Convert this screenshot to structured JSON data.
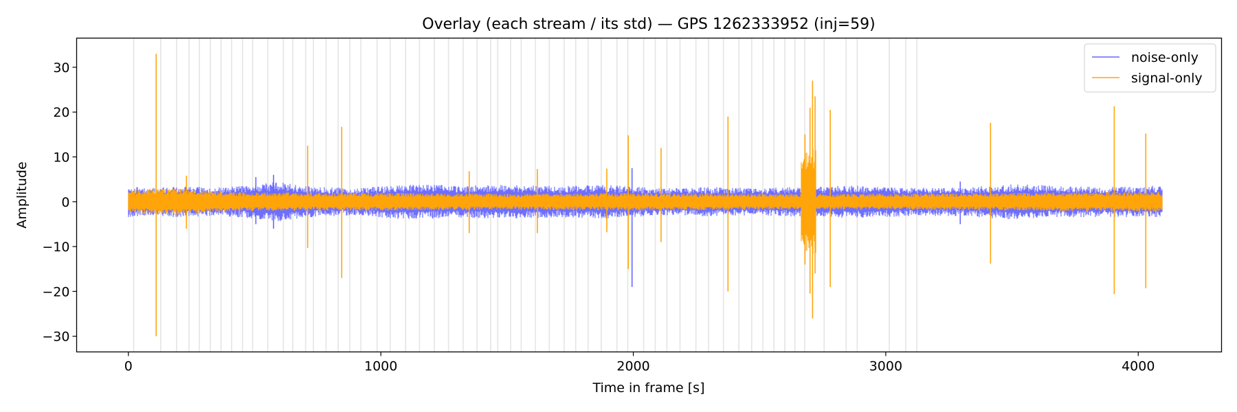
{
  "chart_data": {
    "type": "line",
    "title": "Overlay (each stream / its std) — GPS 1262333952 (inj=59)",
    "xlabel": "Time in frame [s]",
    "ylabel": "Amplitude",
    "xlim": [
      -205,
      4330
    ],
    "ylim": [
      -33.5,
      36.5
    ],
    "xticks": [
      0,
      1000,
      2000,
      3000,
      4000
    ],
    "yticks": [
      -30,
      -20,
      -10,
      0,
      10,
      20,
      30
    ],
    "x_extent": [
      0,
      4096
    ],
    "grid": false,
    "legend_position": "top-right",
    "injection_markers_x": [
      21,
      128,
      191,
      240,
      281,
      325,
      367,
      409,
      452,
      492,
      552,
      614,
      651,
      702,
      733,
      783,
      831,
      877,
      921,
      985,
      1037,
      1098,
      1153,
      1212,
      1268,
      1326,
      1381,
      1435,
      1463,
      1514,
      1556,
      1612,
      1667,
      1726,
      1772,
      1821,
      1873,
      1935,
      1978,
      2041,
      2087,
      2133,
      2185,
      2248,
      2298,
      2357,
      2418,
      2469,
      2513,
      2557,
      2600,
      2640,
      2679,
      2756,
      2843,
      2887,
      3014,
      3079,
      3123
    ],
    "series": [
      {
        "name": "noise-only",
        "color": "#6666ff",
        "envelope": [
          {
            "x": 0,
            "pos": 3.5,
            "neg": -3.5
          },
          {
            "x": 80,
            "pos": 3.0,
            "neg": -3.0
          },
          {
            "x": 200,
            "pos": 3.5,
            "neg": -3.5
          },
          {
            "x": 350,
            "pos": 3.2,
            "neg": -3.2
          },
          {
            "x": 500,
            "pos": 3.8,
            "neg": -3.8
          },
          {
            "x": 600,
            "pos": 4.5,
            "neg": -4.5
          },
          {
            "x": 700,
            "pos": 3.5,
            "neg": -3.5
          },
          {
            "x": 900,
            "pos": 3.0,
            "neg": -3.0
          },
          {
            "x": 1100,
            "pos": 4.0,
            "neg": -4.0
          },
          {
            "x": 1300,
            "pos": 3.6,
            "neg": -3.6
          },
          {
            "x": 1500,
            "pos": 3.8,
            "neg": -3.8
          },
          {
            "x": 1700,
            "pos": 3.5,
            "neg": -3.5
          },
          {
            "x": 1900,
            "pos": 3.8,
            "neg": -3.8
          },
          {
            "x": 2100,
            "pos": 3.0,
            "neg": -3.0
          },
          {
            "x": 2300,
            "pos": 3.3,
            "neg": -3.3
          },
          {
            "x": 2500,
            "pos": 3.0,
            "neg": -3.0
          },
          {
            "x": 2700,
            "pos": 3.5,
            "neg": -3.5
          },
          {
            "x": 2900,
            "pos": 3.6,
            "neg": -3.6
          },
          {
            "x": 3100,
            "pos": 3.2,
            "neg": -3.2
          },
          {
            "x": 3300,
            "pos": 3.2,
            "neg": -3.2
          },
          {
            "x": 3500,
            "pos": 4.0,
            "neg": -4.0
          },
          {
            "x": 3700,
            "pos": 3.5,
            "neg": -3.5
          },
          {
            "x": 3900,
            "pos": 3.4,
            "neg": -3.4
          },
          {
            "x": 4096,
            "pos": 3.6,
            "neg": -3.6
          }
        ],
        "spikes": [
          {
            "x": 505,
            "min": -5.0,
            "max": 5.5
          },
          {
            "x": 575,
            "min": -6.0,
            "max": 6.0
          },
          {
            "x": 1995,
            "min": -19.0,
            "max": 7.5
          },
          {
            "x": 3295,
            "min": -5.0,
            "max": 4.5
          }
        ]
      },
      {
        "name": "signal-only",
        "color": "#ffa50a",
        "envelope": [
          {
            "x": 0,
            "pos": 2.5,
            "neg": -2.5
          },
          {
            "x": 200,
            "pos": 3.0,
            "neg": -3.0
          },
          {
            "x": 400,
            "pos": 2.2,
            "neg": -2.2
          },
          {
            "x": 700,
            "pos": 2.0,
            "neg": -2.0
          },
          {
            "x": 1000,
            "pos": 2.0,
            "neg": -2.0
          },
          {
            "x": 1500,
            "pos": 1.8,
            "neg": -1.8
          },
          {
            "x": 2000,
            "pos": 2.0,
            "neg": -2.0
          },
          {
            "x": 2500,
            "pos": 1.8,
            "neg": -1.8
          },
          {
            "x": 3000,
            "pos": 1.8,
            "neg": -1.8
          },
          {
            "x": 3500,
            "pos": 2.0,
            "neg": -2.0
          },
          {
            "x": 4096,
            "pos": 2.2,
            "neg": -2.2
          }
        ],
        "spikes": [
          {
            "x": 110,
            "min": -30.0,
            "max": 33.0
          },
          {
            "x": 230,
            "min": -6.0,
            "max": 5.8
          },
          {
            "x": 710,
            "min": -10.3,
            "max": 12.5
          },
          {
            "x": 845,
            "min": -17.0,
            "max": 16.7
          },
          {
            "x": 1350,
            "min": -7.0,
            "max": 6.8
          },
          {
            "x": 1620,
            "min": -7.0,
            "max": 7.3
          },
          {
            "x": 1895,
            "min": -6.8,
            "max": 7.4
          },
          {
            "x": 1980,
            "min": -15.0,
            "max": 14.8
          },
          {
            "x": 2110,
            "min": -9.0,
            "max": 12.0
          },
          {
            "x": 2375,
            "min": -20.0,
            "max": 19.0
          },
          {
            "x": 2680,
            "min": -14.0,
            "max": 15.0
          },
          {
            "x": 2700,
            "min": -20.5,
            "max": 21.0
          },
          {
            "x": 2710,
            "min": -26.0,
            "max": 27.0
          },
          {
            "x": 2720,
            "min": -16.0,
            "max": 23.5
          },
          {
            "x": 2780,
            "min": -19.0,
            "max": 20.5
          },
          {
            "x": 3415,
            "min": -13.8,
            "max": 17.6
          },
          {
            "x": 3905,
            "min": -20.6,
            "max": 21.3
          },
          {
            "x": 4030,
            "min": -19.3,
            "max": 15.2
          }
        ],
        "bursts": [
          {
            "x0": 2665,
            "x1": 2725,
            "amp": 12.0
          }
        ]
      }
    ]
  }
}
